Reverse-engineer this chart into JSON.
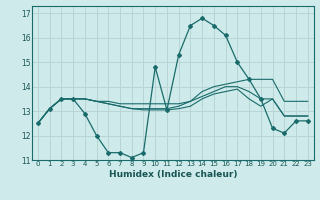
{
  "xlabel": "Humidex (Indice chaleur)",
  "bg_color": "#ceeaea",
  "grid_color": "#b8d4d4",
  "line_color": "#1a6b6b",
  "ylim": [
    11,
    17.3
  ],
  "xlim": [
    -0.5,
    23.5
  ],
  "yticks": [
    11,
    12,
    13,
    14,
    15,
    16,
    17
  ],
  "xticks": [
    0,
    1,
    2,
    3,
    4,
    5,
    6,
    7,
    8,
    9,
    10,
    11,
    12,
    13,
    14,
    15,
    16,
    17,
    18,
    19,
    20,
    21,
    22,
    23
  ],
  "main_series": [
    12.5,
    13.1,
    13.5,
    13.5,
    12.9,
    12.0,
    11.3,
    11.3,
    11.1,
    11.3,
    14.8,
    13.05,
    15.3,
    16.5,
    16.8,
    16.5,
    16.1,
    15.0,
    14.3,
    13.5,
    12.3,
    12.1,
    12.6,
    12.6
  ],
  "flat_series": [
    [
      12.5,
      13.1,
      13.5,
      13.5,
      13.5,
      13.4,
      13.4,
      13.3,
      13.3,
      13.3,
      13.3,
      13.3,
      13.3,
      13.4,
      13.8,
      14.0,
      14.1,
      14.2,
      14.3,
      14.3,
      14.3,
      13.4,
      13.4,
      13.4
    ],
    [
      12.5,
      13.1,
      13.5,
      13.5,
      13.5,
      13.4,
      13.3,
      13.2,
      13.1,
      13.1,
      13.1,
      13.1,
      13.2,
      13.4,
      13.6,
      13.8,
      14.0,
      14.0,
      13.8,
      13.5,
      13.5,
      12.8,
      12.8,
      12.8
    ],
    [
      12.5,
      13.1,
      13.5,
      13.5,
      13.5,
      13.4,
      13.3,
      13.2,
      13.1,
      13.05,
      13.05,
      13.05,
      13.1,
      13.2,
      13.5,
      13.7,
      13.8,
      13.9,
      13.5,
      13.2,
      13.5,
      12.8,
      12.8,
      12.8
    ]
  ]
}
